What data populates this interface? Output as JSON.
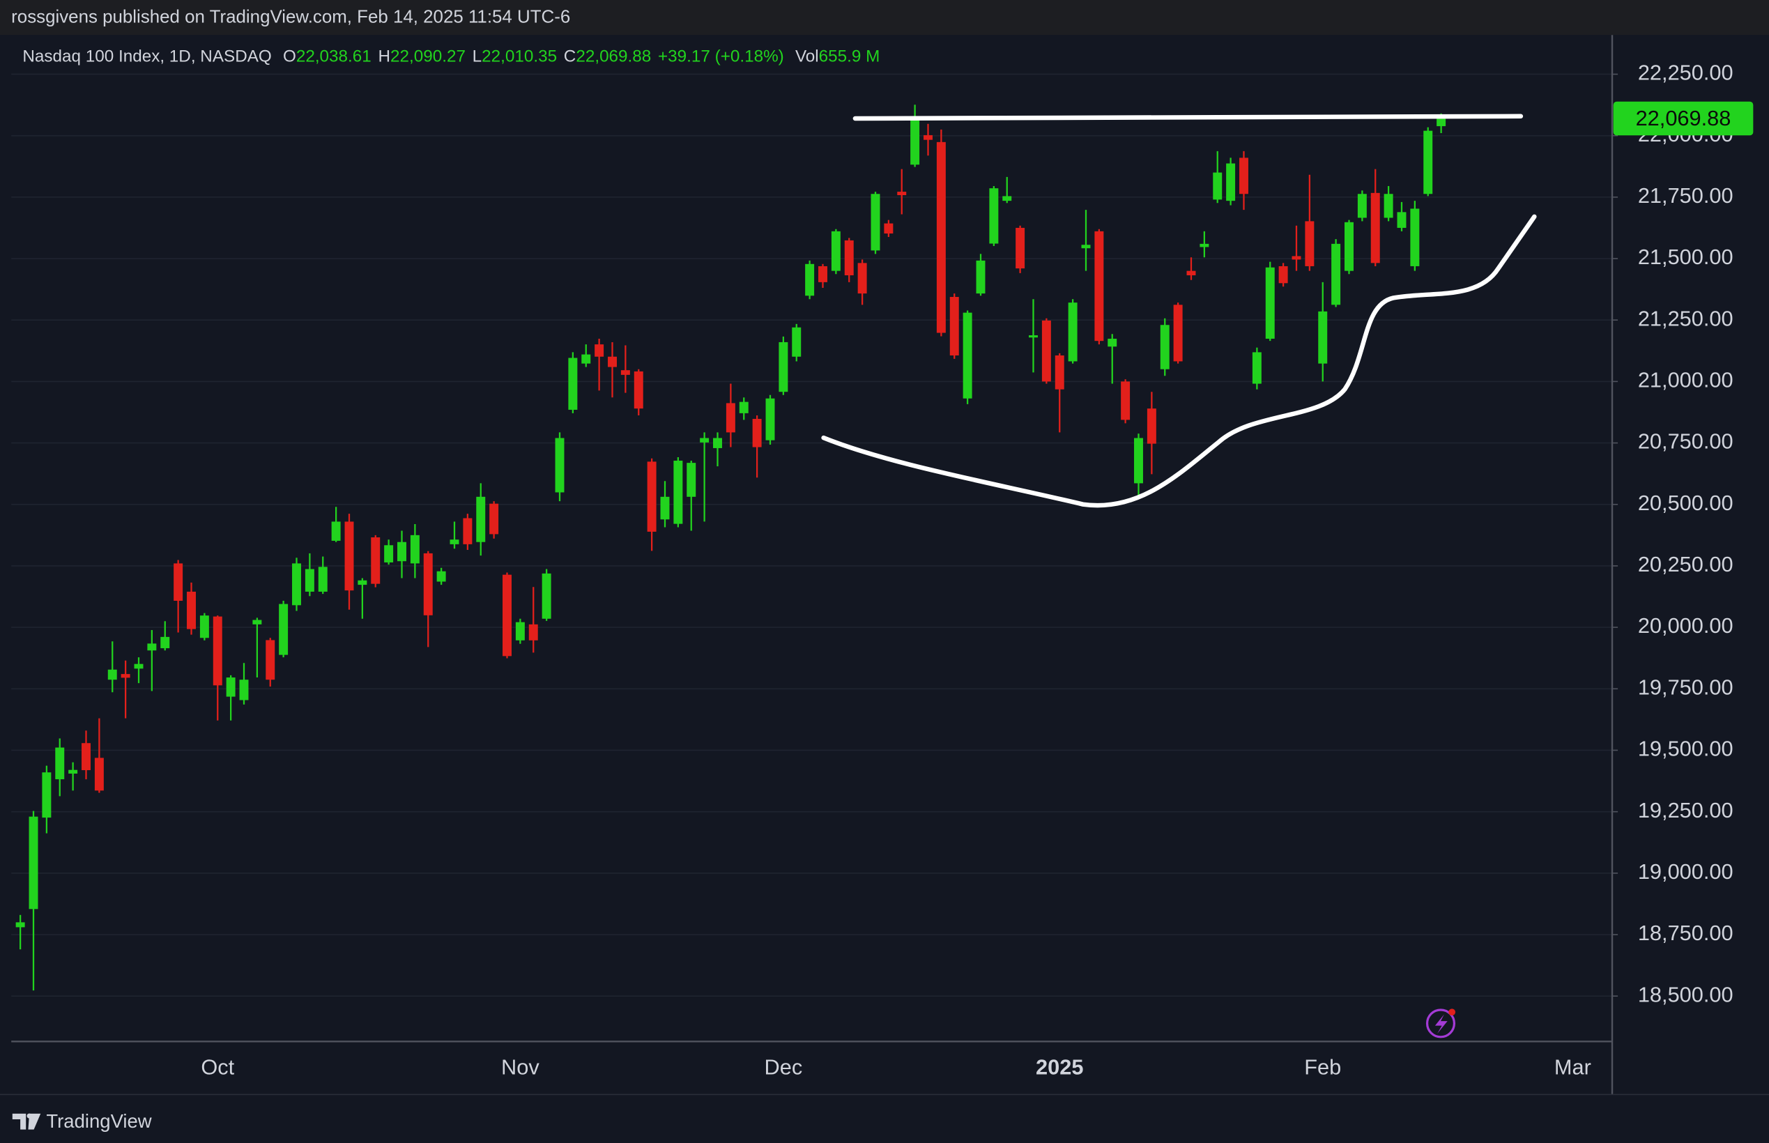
{
  "header": {
    "published": "rossgivens published on TradingView.com, Feb 14, 2025 11:54 UTC-6",
    "symbol": "Nasdaq 100 Index, 1D, NASDAQ",
    "ohlc": [
      {
        "key": "O",
        "value": "22,038.61"
      },
      {
        "key": "H",
        "value": "22,090.27"
      },
      {
        "key": "L",
        "value": "22,010.35"
      },
      {
        "key": "C",
        "value": "22,069.88"
      }
    ],
    "change": "+39.17 (+0.18%)",
    "volume_key": "Vol",
    "volume": "655.9 M"
  },
  "footer": {
    "brand": "TradingView"
  },
  "chart_data": {
    "type": "candlestick",
    "up_color": "#22d31e",
    "down_color": "#e3201b",
    "grid": true,
    "categories": [
      null,
      null,
      null,
      null,
      null,
      null,
      null,
      null,
      null,
      null,
      null,
      null,
      null,
      null,
      null,
      "Oct",
      null,
      null,
      null,
      null,
      null,
      null,
      null,
      null,
      null,
      null,
      null,
      null,
      null,
      null,
      null,
      null,
      null,
      null,
      null,
      null,
      null,
      null,
      "Nov",
      null,
      null,
      null,
      null,
      null,
      null,
      null,
      null,
      null,
      null,
      null,
      null,
      null,
      null,
      null,
      null,
      null,
      null,
      null,
      "Dec",
      null,
      null,
      null,
      null,
      null,
      null,
      null,
      null,
      null,
      null,
      null,
      null,
      null,
      null,
      null,
      null,
      null,
      null,
      null,
      null,
      "2025",
      null,
      null,
      null,
      null,
      null,
      null,
      null,
      null,
      null,
      null,
      null,
      null,
      null,
      null,
      null,
      null,
      null,
      null,
      null,
      "Feb",
      null,
      null,
      null,
      null,
      null,
      null,
      null,
      null,
      null,
      null,
      null,
      null,
      null,
      null,
      null,
      null,
      null,
      null,
      "Mar"
    ],
    "open": [
      18780,
      18854,
      19226,
      19382,
      19405,
      19529,
      19469,
      19787,
      19810,
      19832,
      19906,
      19915,
      20260,
      20145,
      19957,
      20044,
      19718,
      19704,
      20012,
      19948,
      19888,
      20090,
      20145,
      20145,
      20352,
      20430,
      20173,
      20366,
      20264,
      20269,
      20260,
      20301,
      20186,
      20338,
      20444,
      20347,
      20503,
      20214,
      19947,
      20012,
      20035,
      20549,
      20885,
      21073,
      21151,
      21101,
      21046,
      21041,
      20674,
      20439,
      20421,
      20531,
      20752,
      20729,
      20912,
      20871,
      20848,
      20761,
      20958,
      21101,
      21349,
      21469,
      21450,
      21574,
      21482,
      21533,
      21643,
      21772,
      21882,
      22002,
      21974,
      21344,
      20931,
      21358,
      21561,
      21735,
      21625,
      21179,
      21248,
      21106,
      21082,
      21542,
      21611,
      21142,
      21000,
      20586,
      20890,
      21050,
      21312,
      21450,
      21547,
      21740,
      21735,
      21910,
      20991,
      21174,
      21469,
      21510,
      21652,
      21073,
      21312,
      21450,
      21666,
      21767,
      21666,
      21625,
      21469,
      21763,
      22038.61,
      null,
      null,
      null,
      null,
      null,
      null,
      null,
      null,
      null,
      null
    ],
    "high": [
      18830,
      19253,
      19437,
      19548,
      19451,
      19580,
      19630,
      19943,
      19865,
      19878,
      19989,
      20025,
      20274,
      20182,
      20058,
      20048,
      19805,
      19855,
      20039,
      19957,
      20108,
      20283,
      20301,
      20288,
      20490,
      20462,
      20200,
      20375,
      20357,
      20393,
      20420,
      20310,
      20242,
      20430,
      20462,
      20586,
      20513,
      20223,
      20035,
      20164,
      20237,
      20793,
      21119,
      21151,
      21174,
      21160,
      21147,
      21050,
      20687,
      20595,
      20692,
      20678,
      20793,
      20793,
      20991,
      20935,
      20862,
      20945,
      21183,
      21234,
      21492,
      21478,
      21620,
      21584,
      21496,
      21772,
      21657,
      21864,
      22126,
      22048,
      22025,
      21358,
      21289,
      21519,
      21795,
      21832,
      21634,
      21335,
      21257,
      21115,
      21335,
      21698,
      21620,
      21193,
      21009,
      20788,
      20958,
      21257,
      21321,
      21505,
      21611,
      21937,
      21910,
      21937,
      21138,
      21487,
      21482,
      21634,
      21841,
      21404,
      21579,
      21657,
      21777,
      21864,
      21795,
      21730,
      21735,
      22034,
      22090.27,
      null,
      null,
      null,
      null,
      null,
      null,
      null,
      null,
      null,
      null
    ],
    "low": [
      18690,
      18523,
      19162,
      19313,
      19336,
      19382,
      19327,
      19736,
      19630,
      19773,
      19741,
      19906,
      19979,
      19970,
      19947,
      19621,
      19621,
      19686,
      19796,
      19759,
      19878,
      20067,
      20127,
      20136,
      20347,
      20072,
      20035,
      20163,
      20255,
      20200,
      20200,
      19920,
      20173,
      20320,
      20315,
      20292,
      20361,
      19874,
      19933,
      19897,
      20026,
      20513,
      20871,
      21059,
      20963,
      20935,
      20954,
      20862,
      20311,
      20407,
      20407,
      20393,
      20430,
      20655,
      20733,
      20844,
      20609,
      20743,
      20945,
      21082,
      21335,
      21381,
      21437,
      21404,
      21312,
      21519,
      21588,
      21680,
      21873,
      21919,
      21184,
      21092,
      20908,
      21349,
      21551,
      21726,
      21441,
      21037,
      20991,
      20793,
      21073,
      21450,
      21151,
      20991,
      20830,
      20531,
      20623,
      21023,
      21073,
      21413,
      21505,
      21726,
      21717,
      21698,
      20968,
      21165,
      21386,
      21450,
      21450,
      21000,
      21303,
      21437,
      21652,
      21469,
      21652,
      21611,
      21450,
      21754,
      22010.35,
      null,
      null,
      null,
      null,
      null,
      null,
      null,
      null,
      null,
      null
    ],
    "close": [
      18800,
      19230,
      19410,
      19511,
      19420,
      19419,
      19336,
      19828,
      19795,
      19851,
      19934,
      19961,
      20108,
      19993,
      20048,
      19764,
      19796,
      19787,
      20030,
      19787,
      20095,
      20260,
      20237,
      20246,
      20430,
      20150,
      20191,
      20177,
      20334,
      20347,
      20375,
      20049,
      20228,
      20357,
      20338,
      20531,
      20379,
      19883,
      20021,
      19947,
      20219,
      20770,
      21096,
      21110,
      21101,
      21059,
      21027,
      20890,
      20389,
      20531,
      20678,
      20669,
      20770,
      20770,
      20793,
      20917,
      20733,
      20931,
      21160,
      21220,
      21478,
      21404,
      21611,
      21432,
      21358,
      21763,
      21602,
      21758,
      22075,
      21983,
      21198,
      21106,
      21280,
      21492,
      21786,
      21754,
      21460,
      21188,
      21000,
      20968,
      21321,
      21556,
      21165,
      21174,
      20844,
      20770,
      20747,
      21230,
      21082,
      21432,
      21560,
      21850,
      21887,
      21763,
      21119,
      21464,
      21400,
      21496,
      21469,
      21285,
      21560,
      21648,
      21763,
      21482,
      21763,
      21689,
      21703,
      22020,
      22069.88,
      null,
      null,
      null,
      null,
      null,
      null,
      null,
      null,
      null,
      null
    ],
    "last_price": {
      "value": 22069.88,
      "label": "22,069.88"
    },
    "ylim": [
      18320,
      22405
    ],
    "yticks": [
      {
        "value": 18500,
        "label": "18,500.00"
      },
      {
        "value": 18750,
        "label": "18,750.00"
      },
      {
        "value": 19000,
        "label": "19,000.00"
      },
      {
        "value": 19250,
        "label": "19,250.00"
      },
      {
        "value": 19500,
        "label": "19,500.00"
      },
      {
        "value": 19750,
        "label": "19,750.00"
      },
      {
        "value": 20000,
        "label": "20,000.00"
      },
      {
        "value": 20250,
        "label": "20,250.00"
      },
      {
        "value": 20500,
        "label": "20,500.00"
      },
      {
        "value": 20750,
        "label": "20,750.00"
      },
      {
        "value": 21000,
        "label": "21,000.00"
      },
      {
        "value": 21250,
        "label": "21,250.00"
      },
      {
        "value": 21500,
        "label": "21,500.00"
      },
      {
        "value": 21750,
        "label": "21,750.00"
      },
      {
        "value": 22000,
        "label": "22,000.00"
      },
      {
        "value": 22250,
        "label": "22,250.00"
      }
    ]
  }
}
